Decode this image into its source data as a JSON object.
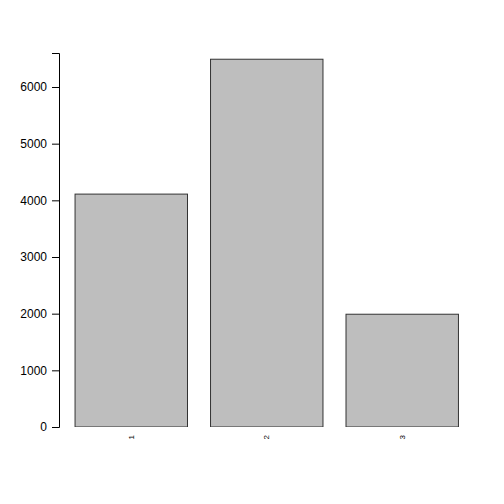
{
  "chart_data": {
    "type": "bar",
    "categories": [
      "1",
      "2",
      "3"
    ],
    "values": [
      4110,
      6490,
      1990
    ],
    "color": "#bebebe",
    "ylim": [
      0,
      6600
    ],
    "yticks": [
      0,
      1000,
      2000,
      3000,
      4000,
      5000,
      6000
    ]
  }
}
